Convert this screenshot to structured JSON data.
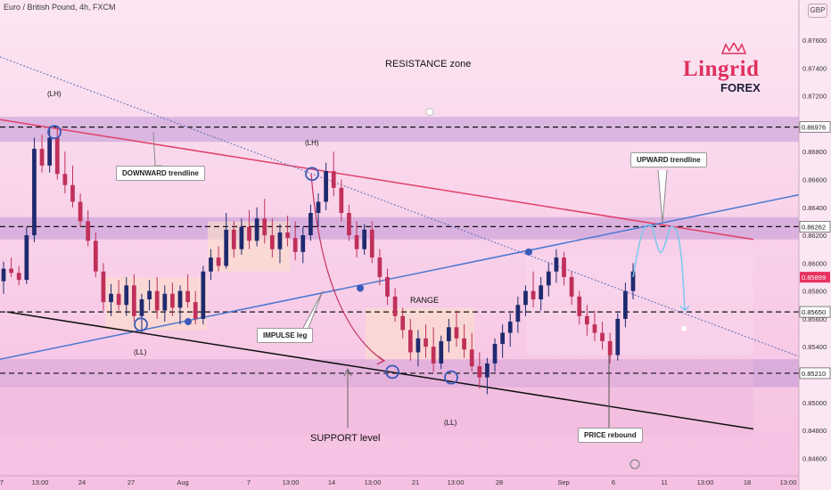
{
  "header": {
    "symbol": "Euro / British Pound, 4h, FXCM",
    "currency": "GBP"
  },
  "logo": {
    "name": "Lingrid",
    "sub": "FOREX"
  },
  "annotations": {
    "resistance": "RESISTANCE zone",
    "downward": "DOWNWARD trendline",
    "upward": "UPWARD trendline",
    "lh_left": "(LH)",
    "lh_mid": "(LH)",
    "ll_left": "(LL)",
    "ll_mid": "(LL)",
    "impulse": "IMPULSE leg",
    "range": "RANGE",
    "support": "SUPPORT level",
    "rebound": "PRICE rebound"
  },
  "chart_data": {
    "type": "candlestick",
    "ylim": [
      0.845,
      0.8776
    ],
    "y_ticks": [
      "0.87600",
      "0.87400",
      "0.87200",
      "0.86800",
      "0.86600",
      "0.86400",
      "0.86200",
      "0.86000",
      "0.85800",
      "0.85600",
      "0.85400",
      "0.85000",
      "0.84800",
      "0.84600"
    ],
    "x_ticks": [
      "7",
      "13:00",
      "24",
      "27",
      "Aug",
      "7",
      "13:00",
      "14",
      "13:00",
      "21",
      "13:00",
      "28",
      "Sep",
      "6",
      "11",
      "13:00",
      "18",
      "13:00"
    ],
    "price_labels": [
      {
        "value": 0.86976,
        "text": "0.86976",
        "color": "#ffffff"
      },
      {
        "value": 0.86262,
        "text": "0.86262",
        "color": "#ffffff"
      },
      {
        "value": 0.85899,
        "text": "0.85899",
        "color": "#e8305e"
      },
      {
        "value": 0.8565,
        "text": "0.85650",
        "color": "#ffffff"
      },
      {
        "value": 0.8521,
        "text": "0.85210",
        "color": "#ffffff"
      }
    ],
    "levels": [
      0.86976,
      0.86262,
      0.8565,
      0.8521
    ],
    "zones": [
      {
        "name": "resistance",
        "from": 0.8687,
        "to": 0.8705
      },
      {
        "name": "upper",
        "from": 0.8617,
        "to": 0.8633
      },
      {
        "name": "support",
        "from": 0.8511,
        "to": 0.8531
      }
    ],
    "colors": {
      "up": "#1f2a6e",
      "down": "#c0305a",
      "downtrend": "#e0406a",
      "uptrend": "#4a78d0",
      "support_line": "#111111",
      "projection": "#7ac8ee"
    },
    "candles": [
      {
        "o": 0.8587,
        "h": 0.8601,
        "l": 0.8578,
        "c": 0.8596
      },
      {
        "o": 0.8596,
        "h": 0.8604,
        "l": 0.859,
        "c": 0.8593
      },
      {
        "o": 0.8593,
        "h": 0.8598,
        "l": 0.8584,
        "c": 0.8588
      },
      {
        "o": 0.8588,
        "h": 0.8626,
        "l": 0.8585,
        "c": 0.862
      },
      {
        "o": 0.862,
        "h": 0.869,
        "l": 0.8615,
        "c": 0.8682
      },
      {
        "o": 0.8682,
        "h": 0.8692,
        "l": 0.8665,
        "c": 0.867
      },
      {
        "o": 0.867,
        "h": 0.8698,
        "l": 0.8665,
        "c": 0.869
      },
      {
        "o": 0.869,
        "h": 0.8696,
        "l": 0.866,
        "c": 0.8664
      },
      {
        "o": 0.8664,
        "h": 0.868,
        "l": 0.865,
        "c": 0.8656
      },
      {
        "o": 0.8656,
        "h": 0.867,
        "l": 0.864,
        "c": 0.8644
      },
      {
        "o": 0.8644,
        "h": 0.865,
        "l": 0.8626,
        "c": 0.863
      },
      {
        "o": 0.863,
        "h": 0.8638,
        "l": 0.8612,
        "c": 0.8616
      },
      {
        "o": 0.8616,
        "h": 0.8622,
        "l": 0.859,
        "c": 0.8594
      },
      {
        "o": 0.8594,
        "h": 0.86,
        "l": 0.8566,
        "c": 0.8572
      },
      {
        "o": 0.8572,
        "h": 0.8585,
        "l": 0.8562,
        "c": 0.8578
      },
      {
        "o": 0.8578,
        "h": 0.8588,
        "l": 0.8566,
        "c": 0.857
      },
      {
        "o": 0.857,
        "h": 0.859,
        "l": 0.8562,
        "c": 0.8584
      },
      {
        "o": 0.8584,
        "h": 0.8592,
        "l": 0.8558,
        "c": 0.8562
      },
      {
        "o": 0.8562,
        "h": 0.8578,
        "l": 0.855,
        "c": 0.8574
      },
      {
        "o": 0.8574,
        "h": 0.8588,
        "l": 0.8566,
        "c": 0.858
      },
      {
        "o": 0.858,
        "h": 0.859,
        "l": 0.856,
        "c": 0.8566
      },
      {
        "o": 0.8566,
        "h": 0.8584,
        "l": 0.8558,
        "c": 0.8578
      },
      {
        "o": 0.8578,
        "h": 0.8586,
        "l": 0.8562,
        "c": 0.8568
      },
      {
        "o": 0.8568,
        "h": 0.8584,
        "l": 0.8556,
        "c": 0.858
      },
      {
        "o": 0.858,
        "h": 0.8592,
        "l": 0.8568,
        "c": 0.8572
      },
      {
        "o": 0.8572,
        "h": 0.858,
        "l": 0.8556,
        "c": 0.856
      },
      {
        "o": 0.856,
        "h": 0.8598,
        "l": 0.8556,
        "c": 0.8594
      },
      {
        "o": 0.8594,
        "h": 0.861,
        "l": 0.8588,
        "c": 0.8604
      },
      {
        "o": 0.8604,
        "h": 0.8612,
        "l": 0.8594,
        "c": 0.8598
      },
      {
        "o": 0.8598,
        "h": 0.8636,
        "l": 0.8596,
        "c": 0.8624
      },
      {
        "o": 0.8624,
        "h": 0.863,
        "l": 0.8604,
        "c": 0.861
      },
      {
        "o": 0.861,
        "h": 0.8632,
        "l": 0.8606,
        "c": 0.8626
      },
      {
        "o": 0.8626,
        "h": 0.8638,
        "l": 0.861,
        "c": 0.8616
      },
      {
        "o": 0.8616,
        "h": 0.864,
        "l": 0.8612,
        "c": 0.8632
      },
      {
        "o": 0.8632,
        "h": 0.8646,
        "l": 0.8614,
        "c": 0.862
      },
      {
        "o": 0.862,
        "h": 0.8632,
        "l": 0.8604,
        "c": 0.861
      },
      {
        "o": 0.861,
        "h": 0.8628,
        "l": 0.86,
        "c": 0.8622
      },
      {
        "o": 0.8622,
        "h": 0.8634,
        "l": 0.8612,
        "c": 0.8618
      },
      {
        "o": 0.8618,
        "h": 0.863,
        "l": 0.8602,
        "c": 0.8608
      },
      {
        "o": 0.8608,
        "h": 0.8626,
        "l": 0.86,
        "c": 0.862
      },
      {
        "o": 0.862,
        "h": 0.8642,
        "l": 0.8616,
        "c": 0.8636
      },
      {
        "o": 0.8636,
        "h": 0.865,
        "l": 0.8626,
        "c": 0.8644
      },
      {
        "o": 0.8644,
        "h": 0.8672,
        "l": 0.8638,
        "c": 0.8666
      },
      {
        "o": 0.8666,
        "h": 0.868,
        "l": 0.8648,
        "c": 0.8654
      },
      {
        "o": 0.8654,
        "h": 0.866,
        "l": 0.863,
        "c": 0.8636
      },
      {
        "o": 0.8636,
        "h": 0.8642,
        "l": 0.8616,
        "c": 0.862
      },
      {
        "o": 0.862,
        "h": 0.863,
        "l": 0.8604,
        "c": 0.861
      },
      {
        "o": 0.861,
        "h": 0.8628,
        "l": 0.8606,
        "c": 0.8624
      },
      {
        "o": 0.8624,
        "h": 0.863,
        "l": 0.86,
        "c": 0.8604
      },
      {
        "o": 0.8604,
        "h": 0.861,
        "l": 0.8584,
        "c": 0.859
      },
      {
        "o": 0.859,
        "h": 0.8596,
        "l": 0.857,
        "c": 0.8576
      },
      {
        "o": 0.8576,
        "h": 0.8582,
        "l": 0.8558,
        "c": 0.8562
      },
      {
        "o": 0.8562,
        "h": 0.8568,
        "l": 0.8546,
        "c": 0.8552
      },
      {
        "o": 0.8552,
        "h": 0.856,
        "l": 0.853,
        "c": 0.8536
      },
      {
        "o": 0.8536,
        "h": 0.8552,
        "l": 0.8526,
        "c": 0.8546
      },
      {
        "o": 0.8546,
        "h": 0.8556,
        "l": 0.8532,
        "c": 0.854
      },
      {
        "o": 0.854,
        "h": 0.8554,
        "l": 0.8522,
        "c": 0.8528
      },
      {
        "o": 0.8528,
        "h": 0.8548,
        "l": 0.8524,
        "c": 0.8544
      },
      {
        "o": 0.8544,
        "h": 0.856,
        "l": 0.8536,
        "c": 0.8554
      },
      {
        "o": 0.8554,
        "h": 0.8566,
        "l": 0.854,
        "c": 0.8546
      },
      {
        "o": 0.8546,
        "h": 0.8556,
        "l": 0.8532,
        "c": 0.8538
      },
      {
        "o": 0.8538,
        "h": 0.855,
        "l": 0.8522,
        "c": 0.8526
      },
      {
        "o": 0.8526,
        "h": 0.8536,
        "l": 0.851,
        "c": 0.8518
      },
      {
        "o": 0.8518,
        "h": 0.8532,
        "l": 0.8506,
        "c": 0.8528
      },
      {
        "o": 0.8528,
        "h": 0.8546,
        "l": 0.8522,
        "c": 0.8542
      },
      {
        "o": 0.8542,
        "h": 0.8556,
        "l": 0.8532,
        "c": 0.855
      },
      {
        "o": 0.855,
        "h": 0.8564,
        "l": 0.854,
        "c": 0.8558
      },
      {
        "o": 0.8558,
        "h": 0.8576,
        "l": 0.855,
        "c": 0.857
      },
      {
        "o": 0.857,
        "h": 0.8584,
        "l": 0.8562,
        "c": 0.858
      },
      {
        "o": 0.858,
        "h": 0.8594,
        "l": 0.8568,
        "c": 0.8574
      },
      {
        "o": 0.8574,
        "h": 0.859,
        "l": 0.8566,
        "c": 0.8584
      },
      {
        "o": 0.8584,
        "h": 0.86,
        "l": 0.8576,
        "c": 0.8594
      },
      {
        "o": 0.8594,
        "h": 0.861,
        "l": 0.8586,
        "c": 0.8604
      },
      {
        "o": 0.8604,
        "h": 0.8608,
        "l": 0.8584,
        "c": 0.859
      },
      {
        "o": 0.859,
        "h": 0.8594,
        "l": 0.857,
        "c": 0.8576
      },
      {
        "o": 0.8576,
        "h": 0.858,
        "l": 0.8556,
        "c": 0.8562
      },
      {
        "o": 0.8562,
        "h": 0.857,
        "l": 0.8548,
        "c": 0.8556
      },
      {
        "o": 0.8556,
        "h": 0.8566,
        "l": 0.8544,
        "c": 0.855
      },
      {
        "o": 0.855,
        "h": 0.8558,
        "l": 0.8538,
        "c": 0.8544
      },
      {
        "o": 0.8544,
        "h": 0.855,
        "l": 0.8528,
        "c": 0.8534
      },
      {
        "o": 0.8534,
        "h": 0.8564,
        "l": 0.853,
        "c": 0.856
      },
      {
        "o": 0.856,
        "h": 0.8586,
        "l": 0.8554,
        "c": 0.858
      },
      {
        "o": 0.858,
        "h": 0.86,
        "l": 0.8574,
        "c": 0.8594
      }
    ]
  }
}
